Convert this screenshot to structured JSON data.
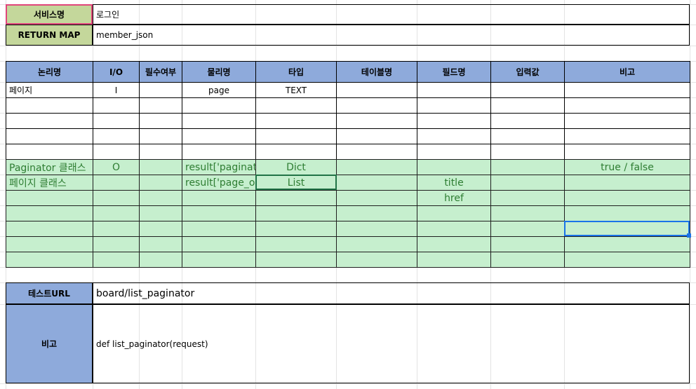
{
  "service": {
    "name_label": "서비스명",
    "name_value": "로그인",
    "return_label": "RETURN MAP",
    "return_value": "member_json"
  },
  "table": {
    "headers": [
      "논리명",
      "I/O",
      "필수여부",
      "물리명",
      "타입",
      "테이블명",
      "필드명",
      "입력값",
      "비고"
    ],
    "rows": [
      [
        "페이지",
        "I",
        "",
        "page",
        "TEXT",
        "",
        "",
        "",
        ""
      ],
      [
        "",
        "",
        "",
        "",
        "",
        "",
        "",
        "",
        ""
      ],
      [
        "",
        "",
        "",
        "",
        "",
        "",
        "",
        "",
        ""
      ],
      [
        "",
        "",
        "",
        "",
        "",
        "",
        "",
        "",
        ""
      ],
      [
        "",
        "",
        "",
        "",
        "",
        "",
        "",
        "",
        ""
      ]
    ],
    "green_rows": [
      [
        "Paginator 클래스",
        "O",
        "",
        "result['paginato",
        "Dict",
        "",
        "",
        "",
        "true / false"
      ],
      [
        "페이지 클래스",
        "",
        "",
        "result['page_ob",
        "List",
        "",
        "title",
        "",
        ""
      ],
      [
        "",
        "",
        "",
        "",
        "",
        "",
        "href",
        "",
        ""
      ],
      [
        "",
        "",
        "",
        "",
        "",
        "",
        "",
        "",
        ""
      ],
      [
        "",
        "",
        "",
        "",
        "",
        "",
        "",
        "",
        ""
      ],
      [
        "",
        "",
        "",
        "",
        "",
        "",
        "",
        "",
        ""
      ],
      [
        "",
        "",
        "",
        "",
        "",
        "",
        "",
        "",
        ""
      ]
    ]
  },
  "test": {
    "url_label": "테스트URL",
    "url_value": "board/list_paginator",
    "note_label": "비고",
    "note_value": "def list_paginator(request)"
  },
  "colors": {
    "header_bg": "#8eaadb",
    "label_bg": "#c4d79b",
    "green_bg": "#c6efce",
    "green_text": "#2e7d32",
    "selection": "#1a73e8",
    "active_cell": "#217346",
    "service_name_border": "#e0457b"
  }
}
